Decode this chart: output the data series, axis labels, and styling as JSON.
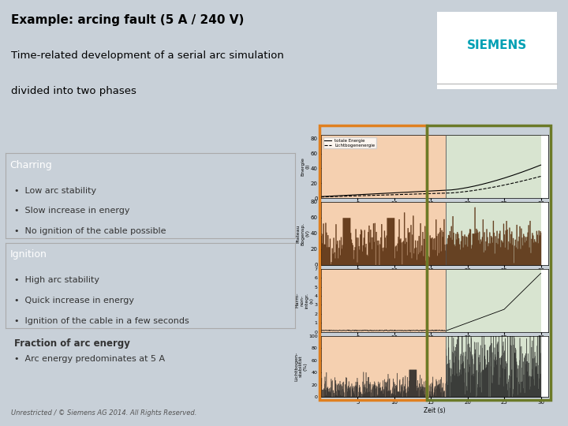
{
  "title_line1": "Example: arcing fault (5 A / 240 V)",
  "title_line2": "Time-related development of a serial arc simulation",
  "title_line3": "divided into two phases",
  "header_bg": "#9aaaba",
  "slide_bg": "#c8d0d8",
  "content_bg": "#ffffff",
  "siemens_color": "#00a0b4",
  "siemens_text": "SIEMENS",
  "charring_color": "#e08020",
  "charring_text": "Charring",
  "charring_bullets": [
    "Low arc stability",
    "Slow increase in energy",
    "No ignition of the cable possible"
  ],
  "ignition_color": "#6b7a28",
  "ignition_text": "Ignition",
  "ignition_bullets": [
    "High arc stability",
    "Quick increase in energy",
    "Ignition of the cable in a few seconds"
  ],
  "fraction_title": "Fraction of arc energy",
  "fraction_bullets": [
    "Arc energy predominates at 5 A"
  ],
  "footer_text": "Unrestricted / © Siemens AG 2014. All Rights Reserved.",
  "phase1_bg": "#f5d0b0",
  "phase2_bg": "#d8e4d0",
  "chart_border_color": "#b8b8b8"
}
